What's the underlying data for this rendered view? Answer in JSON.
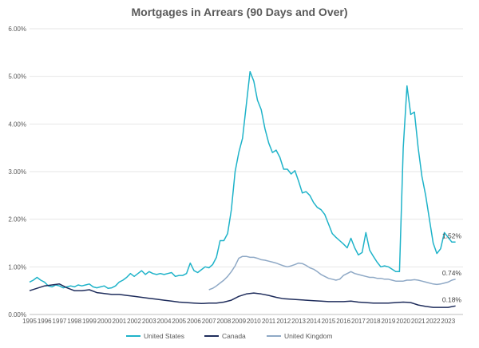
{
  "chart_data": {
    "type": "line",
    "title": "Mortgages in Arrears (90 Days and Over)",
    "xlabel": "",
    "ylabel": "",
    "x_range": [
      1995,
      2024
    ],
    "ylim": [
      0,
      6
    ],
    "y_ticks": [
      0,
      1,
      2,
      3,
      4,
      5,
      6
    ],
    "y_tick_labels": [
      "0.00%",
      "1.00%",
      "2.00%",
      "3.00%",
      "4.00%",
      "5.00%",
      "6.00%"
    ],
    "x_tick_labels": [
      "1995",
      "1996",
      "1997",
      "1998",
      "1999",
      "2000",
      "2001",
      "2002",
      "2003",
      "2004",
      "2005",
      "2006",
      "2007",
      "2008",
      "2009",
      "2010",
      "2011",
      "2012",
      "2013",
      "2014",
      "2015",
      "2016",
      "2017",
      "2018",
      "2019",
      "2020",
      "2021",
      "2022",
      "2023"
    ],
    "legend_position": "bottom",
    "grid": true,
    "series": [
      {
        "name": "United States",
        "color": "#1fb3c9",
        "end_label": "1.52%",
        "points": [
          [
            1995.0,
            0.68
          ],
          [
            1995.25,
            0.72
          ],
          [
            1995.5,
            0.78
          ],
          [
            1995.75,
            0.72
          ],
          [
            1996.0,
            0.68
          ],
          [
            1996.25,
            0.6
          ],
          [
            1996.5,
            0.58
          ],
          [
            1996.75,
            0.62
          ],
          [
            1997.0,
            0.6
          ],
          [
            1997.25,
            0.56
          ],
          [
            1997.5,
            0.58
          ],
          [
            1997.75,
            0.6
          ],
          [
            1998.0,
            0.58
          ],
          [
            1998.25,
            0.62
          ],
          [
            1998.5,
            0.6
          ],
          [
            1998.75,
            0.62
          ],
          [
            1999.0,
            0.64
          ],
          [
            1999.25,
            0.58
          ],
          [
            1999.5,
            0.56
          ],
          [
            1999.75,
            0.58
          ],
          [
            2000.0,
            0.6
          ],
          [
            2000.25,
            0.55
          ],
          [
            2000.5,
            0.56
          ],
          [
            2000.75,
            0.6
          ],
          [
            2001.0,
            0.68
          ],
          [
            2001.25,
            0.72
          ],
          [
            2001.5,
            0.78
          ],
          [
            2001.75,
            0.86
          ],
          [
            2002.0,
            0.8
          ],
          [
            2002.25,
            0.86
          ],
          [
            2002.5,
            0.92
          ],
          [
            2002.75,
            0.84
          ],
          [
            2003.0,
            0.9
          ],
          [
            2003.25,
            0.86
          ],
          [
            2003.5,
            0.84
          ],
          [
            2003.75,
            0.86
          ],
          [
            2004.0,
            0.84
          ],
          [
            2004.25,
            0.86
          ],
          [
            2004.5,
            0.88
          ],
          [
            2004.75,
            0.8
          ],
          [
            2005.0,
            0.82
          ],
          [
            2005.25,
            0.82
          ],
          [
            2005.5,
            0.86
          ],
          [
            2005.75,
            1.08
          ],
          [
            2006.0,
            0.92
          ],
          [
            2006.25,
            0.88
          ],
          [
            2006.5,
            0.94
          ],
          [
            2006.75,
            1.0
          ],
          [
            2007.0,
            0.98
          ],
          [
            2007.25,
            1.05
          ],
          [
            2007.5,
            1.2
          ],
          [
            2007.75,
            1.55
          ],
          [
            2008.0,
            1.55
          ],
          [
            2008.25,
            1.7
          ],
          [
            2008.5,
            2.2
          ],
          [
            2008.75,
            3.0
          ],
          [
            2009.0,
            3.4
          ],
          [
            2009.25,
            3.7
          ],
          [
            2009.5,
            4.4
          ],
          [
            2009.75,
            5.1
          ],
          [
            2010.0,
            4.9
          ],
          [
            2010.25,
            4.5
          ],
          [
            2010.5,
            4.3
          ],
          [
            2010.75,
            3.9
          ],
          [
            2011.0,
            3.6
          ],
          [
            2011.25,
            3.4
          ],
          [
            2011.5,
            3.45
          ],
          [
            2011.75,
            3.3
          ],
          [
            2012.0,
            3.05
          ],
          [
            2012.25,
            3.05
          ],
          [
            2012.5,
            2.95
          ],
          [
            2012.75,
            3.02
          ],
          [
            2013.0,
            2.8
          ],
          [
            2013.25,
            2.55
          ],
          [
            2013.5,
            2.58
          ],
          [
            2013.75,
            2.5
          ],
          [
            2014.0,
            2.35
          ],
          [
            2014.25,
            2.25
          ],
          [
            2014.5,
            2.2
          ],
          [
            2014.75,
            2.1
          ],
          [
            2015.0,
            1.9
          ],
          [
            2015.25,
            1.7
          ],
          [
            2015.5,
            1.62
          ],
          [
            2015.75,
            1.55
          ],
          [
            2016.0,
            1.48
          ],
          [
            2016.25,
            1.4
          ],
          [
            2016.5,
            1.6
          ],
          [
            2016.75,
            1.4
          ],
          [
            2017.0,
            1.25
          ],
          [
            2017.25,
            1.3
          ],
          [
            2017.5,
            1.72
          ],
          [
            2017.75,
            1.35
          ],
          [
            2018.0,
            1.22
          ],
          [
            2018.25,
            1.1
          ],
          [
            2018.5,
            1.0
          ],
          [
            2018.75,
            1.02
          ],
          [
            2019.0,
            1.0
          ],
          [
            2019.25,
            0.95
          ],
          [
            2019.5,
            0.9
          ],
          [
            2019.75,
            0.9
          ],
          [
            2020.0,
            3.5
          ],
          [
            2020.25,
            4.8
          ],
          [
            2020.5,
            4.2
          ],
          [
            2020.75,
            4.25
          ],
          [
            2021.0,
            3.5
          ],
          [
            2021.25,
            2.9
          ],
          [
            2021.5,
            2.5
          ],
          [
            2021.75,
            2.0
          ],
          [
            2022.0,
            1.5
          ],
          [
            2022.25,
            1.28
          ],
          [
            2022.5,
            1.38
          ],
          [
            2022.75,
            1.72
          ],
          [
            2023.0,
            1.62
          ],
          [
            2023.25,
            1.52
          ],
          [
            2023.5,
            1.52
          ]
        ]
      },
      {
        "name": "Canada",
        "color": "#1f2d5c",
        "end_label": "0.18%",
        "points": [
          [
            1995.0,
            0.5
          ],
          [
            1995.5,
            0.55
          ],
          [
            1996.0,
            0.6
          ],
          [
            1996.5,
            0.62
          ],
          [
            1997.0,
            0.64
          ],
          [
            1997.5,
            0.56
          ],
          [
            1998.0,
            0.5
          ],
          [
            1998.5,
            0.5
          ],
          [
            1999.0,
            0.52
          ],
          [
            1999.5,
            0.46
          ],
          [
            2000.0,
            0.44
          ],
          [
            2000.5,
            0.42
          ],
          [
            2001.0,
            0.42
          ],
          [
            2001.5,
            0.4
          ],
          [
            2002.0,
            0.38
          ],
          [
            2002.5,
            0.36
          ],
          [
            2003.0,
            0.34
          ],
          [
            2003.5,
            0.32
          ],
          [
            2004.0,
            0.3
          ],
          [
            2004.5,
            0.28
          ],
          [
            2005.0,
            0.26
          ],
          [
            2005.5,
            0.25
          ],
          [
            2006.0,
            0.24
          ],
          [
            2006.5,
            0.23
          ],
          [
            2007.0,
            0.24
          ],
          [
            2007.5,
            0.24
          ],
          [
            2008.0,
            0.26
          ],
          [
            2008.5,
            0.3
          ],
          [
            2009.0,
            0.38
          ],
          [
            2009.5,
            0.43
          ],
          [
            2010.0,
            0.45
          ],
          [
            2010.5,
            0.43
          ],
          [
            2011.0,
            0.4
          ],
          [
            2011.5,
            0.36
          ],
          [
            2012.0,
            0.33
          ],
          [
            2012.5,
            0.32
          ],
          [
            2013.0,
            0.31
          ],
          [
            2013.5,
            0.3
          ],
          [
            2014.0,
            0.29
          ],
          [
            2014.5,
            0.28
          ],
          [
            2015.0,
            0.27
          ],
          [
            2015.5,
            0.27
          ],
          [
            2016.0,
            0.27
          ],
          [
            2016.5,
            0.28
          ],
          [
            2017.0,
            0.26
          ],
          [
            2017.5,
            0.25
          ],
          [
            2018.0,
            0.24
          ],
          [
            2018.5,
            0.24
          ],
          [
            2019.0,
            0.24
          ],
          [
            2019.5,
            0.25
          ],
          [
            2020.0,
            0.26
          ],
          [
            2020.5,
            0.25
          ],
          [
            2021.0,
            0.2
          ],
          [
            2021.5,
            0.17
          ],
          [
            2022.0,
            0.15
          ],
          [
            2022.5,
            0.15
          ],
          [
            2023.0,
            0.15
          ],
          [
            2023.5,
            0.18
          ]
        ]
      },
      {
        "name": "United Kingdom",
        "color": "#8fa9c6",
        "end_label": "0.74%",
        "points": [
          [
            2007.0,
            0.52
          ],
          [
            2007.25,
            0.55
          ],
          [
            2007.5,
            0.6
          ],
          [
            2007.75,
            0.66
          ],
          [
            2008.0,
            0.72
          ],
          [
            2008.25,
            0.8
          ],
          [
            2008.5,
            0.9
          ],
          [
            2008.75,
            1.02
          ],
          [
            2009.0,
            1.18
          ],
          [
            2009.25,
            1.22
          ],
          [
            2009.5,
            1.22
          ],
          [
            2009.75,
            1.2
          ],
          [
            2010.0,
            1.2
          ],
          [
            2010.25,
            1.18
          ],
          [
            2010.5,
            1.15
          ],
          [
            2010.75,
            1.14
          ],
          [
            2011.0,
            1.12
          ],
          [
            2011.25,
            1.1
          ],
          [
            2011.5,
            1.08
          ],
          [
            2011.75,
            1.05
          ],
          [
            2012.0,
            1.02
          ],
          [
            2012.25,
            1.0
          ],
          [
            2012.5,
            1.02
          ],
          [
            2012.75,
            1.05
          ],
          [
            2013.0,
            1.08
          ],
          [
            2013.25,
            1.07
          ],
          [
            2013.5,
            1.03
          ],
          [
            2013.75,
            0.98
          ],
          [
            2014.0,
            0.95
          ],
          [
            2014.25,
            0.9
          ],
          [
            2014.5,
            0.84
          ],
          [
            2014.75,
            0.8
          ],
          [
            2015.0,
            0.76
          ],
          [
            2015.25,
            0.74
          ],
          [
            2015.5,
            0.72
          ],
          [
            2015.75,
            0.74
          ],
          [
            2016.0,
            0.82
          ],
          [
            2016.25,
            0.86
          ],
          [
            2016.5,
            0.9
          ],
          [
            2016.75,
            0.86
          ],
          [
            2017.0,
            0.84
          ],
          [
            2017.25,
            0.82
          ],
          [
            2017.5,
            0.8
          ],
          [
            2017.75,
            0.78
          ],
          [
            2018.0,
            0.78
          ],
          [
            2018.25,
            0.76
          ],
          [
            2018.5,
            0.76
          ],
          [
            2018.75,
            0.74
          ],
          [
            2019.0,
            0.74
          ],
          [
            2019.25,
            0.72
          ],
          [
            2019.5,
            0.7
          ],
          [
            2019.75,
            0.7
          ],
          [
            2020.0,
            0.7
          ],
          [
            2020.25,
            0.72
          ],
          [
            2020.5,
            0.72
          ],
          [
            2020.75,
            0.73
          ],
          [
            2021.0,
            0.72
          ],
          [
            2021.25,
            0.7
          ],
          [
            2021.5,
            0.68
          ],
          [
            2021.75,
            0.66
          ],
          [
            2022.0,
            0.64
          ],
          [
            2022.25,
            0.63
          ],
          [
            2022.5,
            0.64
          ],
          [
            2022.75,
            0.66
          ],
          [
            2023.0,
            0.68
          ],
          [
            2023.25,
            0.72
          ],
          [
            2023.5,
            0.74
          ]
        ]
      }
    ]
  }
}
